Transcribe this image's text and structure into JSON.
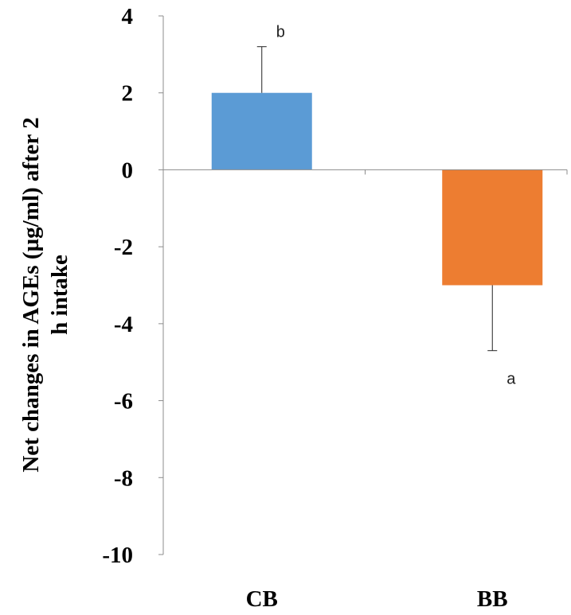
{
  "chart_data": {
    "type": "bar",
    "categories": [
      "CB",
      "BB"
    ],
    "values": [
      2,
      -3
    ],
    "error_bars": [
      1.2,
      1.7
    ],
    "significance_labels": [
      "b",
      "a"
    ],
    "colors": [
      "#5b9bd5",
      "#ed7d31"
    ],
    "ylabel_lines": [
      "Net changes in AGEs (µg/ml) after 2",
      "h intake"
    ],
    "ylim": [
      -10,
      4
    ],
    "yticks": [
      4,
      2,
      0,
      -2,
      -4,
      -6,
      -8,
      -10
    ],
    "grid": false,
    "legend": "none"
  }
}
